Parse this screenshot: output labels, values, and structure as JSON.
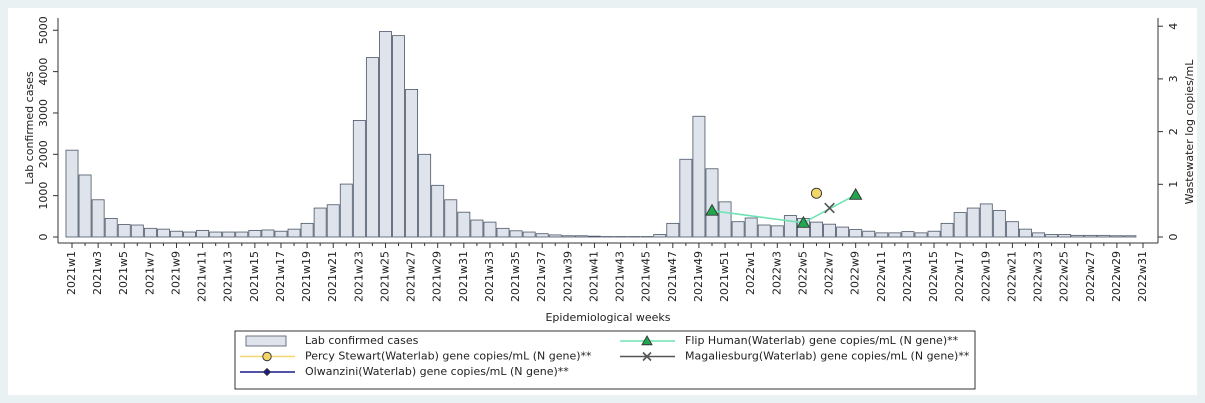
{
  "chart_data": {
    "type": "bar",
    "x_label": "Epidemiological weeks",
    "y_label": "Lab confirmed cases",
    "y2_label": "Wastewater log copies/mL",
    "categories": [
      "2021w1",
      null,
      "2021w3",
      null,
      "2021w5",
      null,
      "2021w7",
      null,
      "2021w9",
      null,
      "2021w11",
      null,
      "2021w13",
      null,
      "2021w15",
      null,
      "2021w17",
      null,
      "2021w19",
      null,
      "2021w21",
      null,
      "2021w23",
      null,
      "2021w25",
      null,
      "2021w27",
      null,
      "2021w29",
      null,
      "2021w31",
      null,
      "2021w33",
      null,
      "2021w35",
      null,
      "2021w37",
      null,
      "2021w39",
      null,
      "2021w41",
      null,
      "2021w43",
      null,
      "2021w45",
      null,
      "2021w47",
      null,
      "2021w49",
      null,
      "2021w51",
      null,
      "2022w1",
      null,
      "2022w3",
      null,
      "2022w5",
      null,
      "2022w7",
      null,
      "2022w9",
      null,
      "2022w11",
      null,
      "2022w13",
      null,
      "2022w15",
      null,
      "2022w17",
      null,
      "2022w19",
      null,
      "2022w21",
      null,
      "2022w23",
      null,
      "2022w25",
      null,
      "2022w27",
      null,
      "2022w29",
      null,
      "2022w31"
    ],
    "ylim": [
      0,
      5200
    ],
    "yticks": [
      0,
      1000,
      2000,
      3000,
      4000,
      5000
    ],
    "y2lim": [
      0,
      4.08
    ],
    "y2ticks": [
      0,
      1,
      2,
      3,
      4
    ],
    "connect_gaps": true,
    "series": [
      {
        "name": "Lab confirmed cases",
        "type": "bar",
        "color": "#dfe4ec",
        "edge_color": "#4a5668",
        "values": [
          2100,
          1500,
          900,
          450,
          300,
          290,
          210,
          190,
          140,
          120,
          160,
          120,
          120,
          120,
          160,
          170,
          140,
          190,
          330,
          700,
          780,
          1280,
          2820,
          4340,
          4970,
          4870,
          3570,
          2000,
          1250,
          900,
          600,
          410,
          360,
          210,
          150,
          120,
          80,
          50,
          30,
          30,
          20,
          10,
          10,
          10,
          10,
          60,
          330,
          1880,
          2920,
          1650,
          850,
          370,
          460,
          290,
          270,
          520,
          450,
          360,
          310,
          240,
          180,
          140,
          100,
          100,
          130,
          100,
          140,
          330,
          590,
          700,
          800,
          640,
          370,
          190,
          100,
          60,
          60,
          40,
          40,
          40,
          30,
          30,
          null
        ]
      },
      {
        "name": "Flip Human(Waterlab) gene copies/mL (N gene)**",
        "type": "line",
        "axis": "y2",
        "color": "#6ee3b4",
        "marker": "triangle",
        "marker_color": "#22a64e",
        "values": [
          null,
          null,
          null,
          null,
          null,
          null,
          null,
          null,
          null,
          null,
          null,
          null,
          null,
          null,
          null,
          null,
          null,
          null,
          null,
          null,
          null,
          null,
          null,
          null,
          null,
          null,
          null,
          null,
          null,
          null,
          null,
          null,
          null,
          null,
          null,
          null,
          null,
          null,
          null,
          null,
          null,
          null,
          null,
          null,
          null,
          null,
          null,
          null,
          null,
          0.5,
          null,
          null,
          null,
          null,
          null,
          null,
          0.27,
          null,
          null,
          null,
          0.8,
          null,
          null,
          null,
          null,
          null,
          null,
          null,
          null,
          null,
          null,
          null,
          null,
          null,
          null,
          null,
          null,
          null,
          null,
          null,
          null,
          null,
          null
        ]
      },
      {
        "name": "Percy Stewart(Waterlab) gene copies/mL (N gene)**",
        "type": "line",
        "axis": "y2",
        "color": "#f6d872",
        "marker": "circle",
        "marker_color": "#f3d66a",
        "values": [
          null,
          null,
          null,
          null,
          null,
          null,
          null,
          null,
          null,
          null,
          null,
          null,
          null,
          null,
          null,
          null,
          null,
          null,
          null,
          null,
          null,
          null,
          null,
          null,
          null,
          null,
          null,
          null,
          null,
          null,
          null,
          null,
          null,
          null,
          null,
          null,
          null,
          null,
          null,
          null,
          null,
          null,
          null,
          null,
          null,
          null,
          null,
          null,
          null,
          null,
          null,
          null,
          null,
          null,
          null,
          null,
          null,
          0.83,
          null,
          null,
          null,
          null,
          null,
          null,
          null,
          null,
          null,
          null,
          null,
          null,
          null,
          null,
          null,
          null,
          null,
          null,
          null,
          null,
          null,
          null,
          null,
          null,
          null
        ]
      },
      {
        "name": "Magaliesburg(Waterlab) gene copies/mL (N gene)**",
        "type": "line",
        "axis": "y2",
        "color": "#555555",
        "marker": "x",
        "marker_color": "#555555",
        "values": [
          null,
          null,
          null,
          null,
          null,
          null,
          null,
          null,
          null,
          null,
          null,
          null,
          null,
          null,
          null,
          null,
          null,
          null,
          null,
          null,
          null,
          null,
          null,
          null,
          null,
          null,
          null,
          null,
          null,
          null,
          null,
          null,
          null,
          null,
          null,
          null,
          null,
          null,
          null,
          null,
          null,
          null,
          null,
          null,
          null,
          null,
          null,
          null,
          null,
          null,
          null,
          null,
          null,
          null,
          null,
          null,
          null,
          null,
          0.55,
          null,
          null,
          null,
          null,
          null,
          null,
          null,
          null,
          null,
          null,
          null,
          null,
          null,
          null,
          null,
          null,
          null,
          null,
          null,
          null,
          null,
          null,
          null,
          null
        ]
      },
      {
        "name": "Olwanzini(Waterlab) gene copies/mL (N gene)**",
        "type": "line",
        "axis": "y2",
        "color": "#1a1a8c",
        "marker": "diamond",
        "marker_color": "#1a1a8c",
        "values": [
          null,
          null,
          null,
          null,
          null,
          null,
          null,
          null,
          null,
          null,
          null,
          null,
          null,
          null,
          null,
          null,
          null,
          null,
          null,
          null,
          null,
          null,
          null,
          null,
          null,
          null,
          null,
          null,
          null,
          null,
          null,
          null,
          null,
          null,
          null,
          null,
          null,
          null,
          null,
          null,
          null,
          null,
          null,
          null,
          null,
          null,
          null,
          null,
          null,
          null,
          null,
          null,
          null,
          null,
          null,
          null,
          null,
          null,
          null,
          null,
          null,
          null,
          null,
          null,
          null,
          null,
          null,
          null,
          null,
          null,
          null,
          null,
          null,
          null,
          null,
          null,
          null,
          null,
          null,
          null,
          null,
          null,
          null
        ]
      }
    ]
  }
}
